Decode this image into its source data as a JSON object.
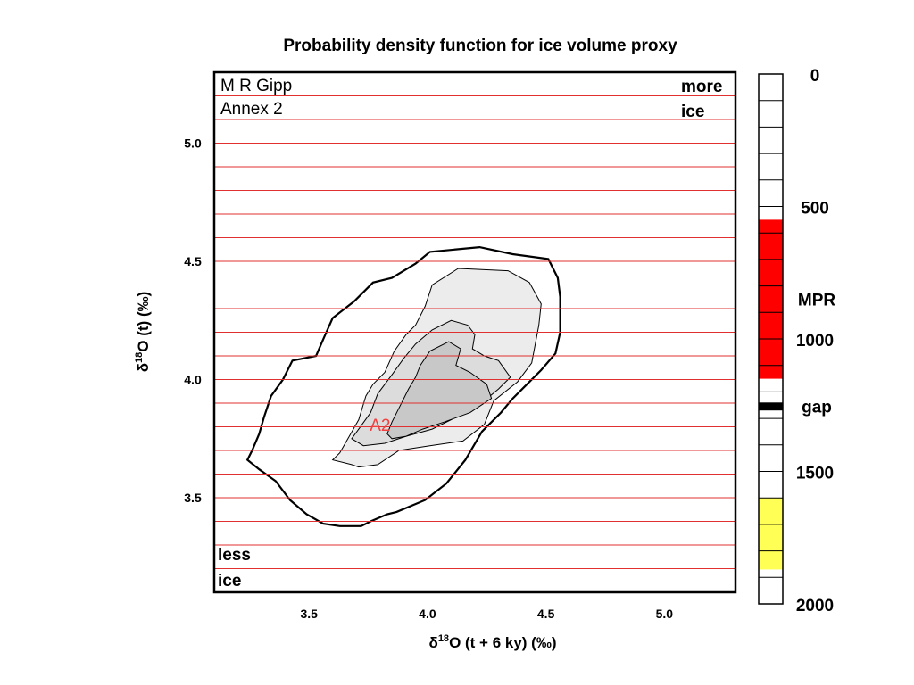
{
  "chart_data": {
    "type": "contour",
    "title": "Probability density function for ice volume proxy",
    "xlabel": {
      "prefix": "δ",
      "sup": "18",
      "suffix": "O (t + 6 ky) (‰)"
    },
    "ylabel": {
      "prefix": "δ",
      "sup": "18",
      "suffix": "O (t) (‰)"
    },
    "xlim": [
      3.1,
      5.3
    ],
    "ylim": [
      3.1,
      5.3
    ],
    "x_ticks": [
      "3.5",
      "4.0",
      "4.5",
      "5.0"
    ],
    "y_ticks": [
      "3.5",
      "4.0",
      "4.5",
      "5.0"
    ],
    "reference_lines_y": [
      3.2,
      3.3,
      3.4,
      3.5,
      3.6,
      3.7,
      3.8,
      3.9,
      4.0,
      4.1,
      4.2,
      4.3,
      4.4,
      4.5,
      4.6,
      4.7,
      4.8,
      4.9,
      5.0,
      5.1,
      5.2
    ],
    "reference_line_color": "#e03030",
    "contour_fills": [
      "#ffffff",
      "#ececec",
      "#dcdcdc",
      "#c8c8c8"
    ],
    "contours": [
      [
        [
          3.6,
          3.66
        ],
        [
          3.63,
          3.69
        ],
        [
          3.67,
          3.76
        ],
        [
          3.71,
          3.83
        ],
        [
          3.74,
          3.93
        ],
        [
          3.77,
          3.98
        ],
        [
          3.82,
          4.03
        ],
        [
          3.86,
          4.12
        ],
        [
          3.91,
          4.19
        ],
        [
          3.95,
          4.23
        ],
        [
          3.99,
          4.31
        ],
        [
          4.02,
          4.4
        ],
        [
          4.13,
          4.47
        ],
        [
          4.34,
          4.46
        ],
        [
          4.43,
          4.41
        ],
        [
          4.48,
          4.32
        ],
        [
          4.47,
          4.23
        ],
        [
          4.44,
          4.07
        ],
        [
          4.38,
          3.99
        ],
        [
          4.28,
          3.91
        ],
        [
          4.24,
          3.81
        ],
        [
          4.15,
          3.74
        ],
        [
          4.01,
          3.72
        ],
        [
          3.88,
          3.7
        ],
        [
          3.79,
          3.64
        ],
        [
          3.71,
          3.63
        ],
        [
          3.68,
          3.64
        ],
        [
          3.6,
          3.66
        ]
      ],
      [
        [
          3.68,
          3.75
        ],
        [
          3.71,
          3.79
        ],
        [
          3.76,
          3.86
        ],
        [
          3.79,
          3.94
        ],
        [
          3.85,
          4.02
        ],
        [
          3.9,
          4.09
        ],
        [
          3.95,
          4.15
        ],
        [
          4.02,
          4.21
        ],
        [
          4.1,
          4.25
        ],
        [
          4.17,
          4.23
        ],
        [
          4.2,
          4.19
        ],
        [
          4.19,
          4.13
        ],
        [
          4.24,
          4.1
        ],
        [
          4.3,
          4.08
        ],
        [
          4.35,
          4.01
        ],
        [
          4.3,
          3.96
        ],
        [
          4.24,
          3.91
        ],
        [
          4.17,
          3.87
        ],
        [
          4.1,
          3.83
        ],
        [
          4.02,
          3.79
        ],
        [
          3.91,
          3.76
        ],
        [
          3.82,
          3.73
        ],
        [
          3.73,
          3.72
        ],
        [
          3.68,
          3.75
        ]
      ],
      [
        [
          3.83,
          3.77
        ],
        [
          3.85,
          3.82
        ],
        [
          3.88,
          3.88
        ],
        [
          3.92,
          3.96
        ],
        [
          3.95,
          4.01
        ],
        [
          3.97,
          4.06
        ],
        [
          4.01,
          4.12
        ],
        [
          4.09,
          4.16
        ],
        [
          4.14,
          4.13
        ],
        [
          4.12,
          4.06
        ],
        [
          4.18,
          4.03
        ],
        [
          4.25,
          3.98
        ],
        [
          4.27,
          3.92
        ],
        [
          4.18,
          3.86
        ],
        [
          4.07,
          3.82
        ],
        [
          3.98,
          3.79
        ],
        [
          3.91,
          3.76
        ],
        [
          3.85,
          3.75
        ],
        [
          3.83,
          3.77
        ]
      ]
    ],
    "outer_contour": [
      [
        3.24,
        3.66
      ],
      [
        3.26,
        3.7
      ],
      [
        3.29,
        3.77
      ],
      [
        3.31,
        3.84
      ],
      [
        3.34,
        3.93
      ],
      [
        3.39,
        4.0
      ],
      [
        3.43,
        4.08
      ],
      [
        3.53,
        4.1
      ],
      [
        3.56,
        4.17
      ],
      [
        3.6,
        4.26
      ],
      [
        3.69,
        4.33
      ],
      [
        3.77,
        4.41
      ],
      [
        3.85,
        4.43
      ],
      [
        3.95,
        4.49
      ],
      [
        4.01,
        4.54
      ],
      [
        4.22,
        4.56
      ],
      [
        4.36,
        4.53
      ],
      [
        4.51,
        4.51
      ],
      [
        4.55,
        4.43
      ],
      [
        4.56,
        4.35
      ],
      [
        4.56,
        4.2
      ],
      [
        4.54,
        4.11
      ],
      [
        4.48,
        4.04
      ],
      [
        4.42,
        3.98
      ],
      [
        4.36,
        3.92
      ],
      [
        4.31,
        3.86
      ],
      [
        4.23,
        3.78
      ],
      [
        4.16,
        3.66
      ],
      [
        4.08,
        3.56
      ],
      [
        3.99,
        3.49
      ],
      [
        3.87,
        3.44
      ],
      [
        3.83,
        3.43
      ],
      [
        3.76,
        3.4
      ],
      [
        3.72,
        3.38
      ],
      [
        3.63,
        3.38
      ],
      [
        3.56,
        3.39
      ],
      [
        3.49,
        3.43
      ],
      [
        3.42,
        3.49
      ],
      [
        3.36,
        3.57
      ],
      [
        3.29,
        3.62
      ],
      [
        3.24,
        3.66
      ]
    ],
    "point_label": {
      "text": "A2",
      "x": 3.8,
      "y": 3.81,
      "color": "#f04040"
    },
    "corner_labels": {
      "top_left_1": "M R Gipp",
      "top_left_2": "Annex 2",
      "top_right_1": "more",
      "top_right_2": "ice",
      "bottom_left_1": "less",
      "bottom_left_2": "ice"
    },
    "time_scale": {
      "range": [
        0,
        2000
      ],
      "tick_labels": [
        {
          "label": "0",
          "value": 0
        },
        {
          "label": "500",
          "value": 500
        },
        {
          "label": "1000",
          "value": 1000
        },
        {
          "label": "1500",
          "value": 1500
        },
        {
          "label": "2000",
          "value": 2000
        }
      ],
      "segment_step": 100,
      "highlight_blocks": [
        {
          "from": 550,
          "to": 1150,
          "color": "#ff0000",
          "label": "MPR"
        },
        {
          "from": 1240,
          "to": 1270,
          "color": "#000000",
          "label": "gap"
        },
        {
          "from": 1600,
          "to": 1870,
          "color": "#ffff55",
          "label": ""
        }
      ]
    }
  }
}
